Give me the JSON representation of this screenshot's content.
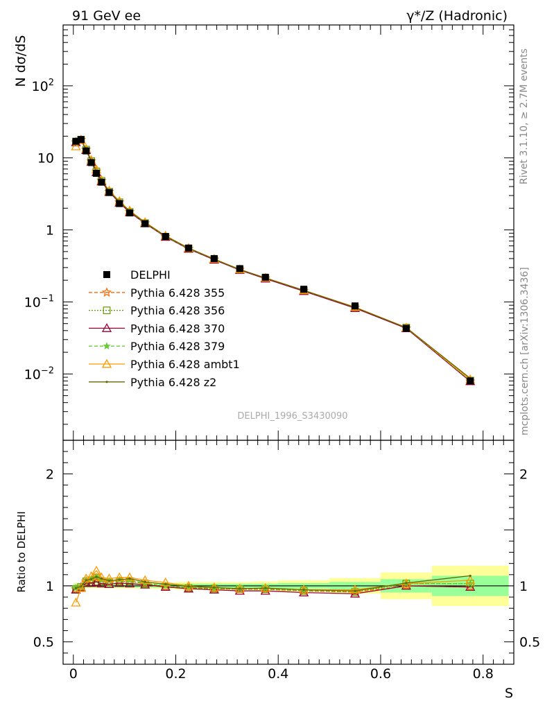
{
  "header": {
    "left": "91 GeV ee",
    "right": "γ*/Z (Hadronic)"
  },
  "side_labels": {
    "rivet": "Rivet 3.1.10, ≥ 2.7M events",
    "mcplots": "mcplots.cern.ch [arXiv:1306.3436]"
  },
  "analysis_id": "DELPHI_1996_S3430090",
  "colors": {
    "data": "#000000",
    "p355": "#ff6600",
    "p356": "#669900",
    "p370": "#990033",
    "p379": "#66cc33",
    "ambt1": "#ff9900",
    "z2": "#666600",
    "band_inner": "#99ff99",
    "band_outer": "#ffff99"
  },
  "chart_data": [
    {
      "type": "line",
      "panel": "main",
      "ylabel": "N dσ/dS",
      "yscale": "log",
      "ylim": [
        0.0012,
        700
      ],
      "xlim": [
        -0.02,
        0.86
      ],
      "y_tick_labels": [
        "10^-2",
        "10^-1",
        "1",
        "10",
        "10^2"
      ],
      "x": [
        0.005,
        0.015,
        0.025,
        0.035,
        0.045,
        0.055,
        0.07,
        0.09,
        0.11,
        0.14,
        0.18,
        0.225,
        0.275,
        0.325,
        0.375,
        0.45,
        0.55,
        0.65,
        0.775
      ],
      "legend_position": "middle-left",
      "series": [
        {
          "name": "DELPHI",
          "key": "data",
          "values": [
            17.0,
            18.0,
            12.5,
            8.6,
            6.1,
            4.6,
            3.3,
            2.32,
            1.72,
            1.22,
            0.81,
            0.56,
            0.4,
            0.29,
            0.22,
            0.15,
            0.088,
            0.043,
            0.008
          ]
        },
        {
          "name": "Pythia 6.428 355",
          "key": "p355",
          "values": [
            16.5,
            17.8,
            13.0,
            9.0,
            6.5,
            4.8,
            3.4,
            2.42,
            1.78,
            1.24,
            0.8,
            0.55,
            0.39,
            0.28,
            0.213,
            0.143,
            0.083,
            0.043,
            0.0079
          ]
        },
        {
          "name": "Pythia 6.428 356",
          "key": "p356",
          "values": [
            16.5,
            17.8,
            13.0,
            9.0,
            6.5,
            4.8,
            3.4,
            2.42,
            1.78,
            1.24,
            0.8,
            0.55,
            0.39,
            0.28,
            0.213,
            0.143,
            0.083,
            0.044,
            0.0081
          ]
        },
        {
          "name": "Pythia 6.428 370",
          "key": "p370",
          "values": [
            16.4,
            17.7,
            12.8,
            8.8,
            6.3,
            4.7,
            3.35,
            2.38,
            1.75,
            1.23,
            0.8,
            0.545,
            0.385,
            0.277,
            0.21,
            0.141,
            0.082,
            0.043,
            0.0079
          ]
        },
        {
          "name": "Pythia 6.428 379",
          "key": "p379",
          "values": [
            16.7,
            17.9,
            13.1,
            9.1,
            6.6,
            4.85,
            3.45,
            2.45,
            1.8,
            1.25,
            0.81,
            0.552,
            0.392,
            0.282,
            0.215,
            0.144,
            0.084,
            0.044,
            0.0081
          ]
        },
        {
          "name": "Pythia 6.428 ambt1",
          "key": "ambt1",
          "values": [
            14.4,
            17.6,
            13.3,
            9.3,
            6.9,
            4.9,
            3.5,
            2.5,
            1.85,
            1.28,
            0.83,
            0.56,
            0.395,
            0.283,
            0.216,
            0.145,
            0.085,
            0.044,
            0.0084
          ]
        },
        {
          "name": "Pythia 6.428 z2",
          "key": "z2",
          "values": [
            16.6,
            17.9,
            13.1,
            9.1,
            6.6,
            4.9,
            3.45,
            2.45,
            1.83,
            1.26,
            0.82,
            0.558,
            0.393,
            0.282,
            0.215,
            0.145,
            0.084,
            0.044,
            0.0087
          ]
        }
      ]
    },
    {
      "type": "line",
      "panel": "ratio",
      "ylabel": "Ratio to DELPHI",
      "xlabel": "S",
      "ylim": [
        0.3,
        2.3
      ],
      "xlim": [
        -0.02,
        0.86
      ],
      "x_tick_labels": [
        "0",
        "0.2",
        "0.4",
        "0.6",
        "0.8"
      ],
      "y_tick_labels": [
        "0.5",
        "1",
        "2"
      ],
      "bin_edges": [
        0.0,
        0.01,
        0.02,
        0.03,
        0.04,
        0.05,
        0.06,
        0.08,
        0.1,
        0.12,
        0.16,
        0.2,
        0.25,
        0.3,
        0.35,
        0.4,
        0.5,
        0.6,
        0.7,
        0.85
      ],
      "band_inner": [
        0.015,
        0.013,
        0.013,
        0.013,
        0.013,
        0.013,
        0.013,
        0.014,
        0.014,
        0.015,
        0.016,
        0.02,
        0.02,
        0.02,
        0.02,
        0.025,
        0.035,
        0.06,
        0.09
      ],
      "band_outer": [
        0.025,
        0.022,
        0.022,
        0.022,
        0.022,
        0.022,
        0.022,
        0.024,
        0.024,
        0.025,
        0.027,
        0.035,
        0.035,
        0.035,
        0.04,
        0.05,
        0.07,
        0.12,
        0.18
      ],
      "series": [
        {
          "key": "p355",
          "values": [
            0.97,
            0.99,
            1.04,
            1.05,
            1.07,
            1.04,
            1.03,
            1.04,
            1.04,
            1.02,
            0.99,
            0.98,
            0.975,
            0.97,
            0.97,
            0.955,
            0.945,
            1.0,
            0.99
          ]
        },
        {
          "key": "p356",
          "values": [
            0.97,
            0.99,
            1.04,
            1.05,
            1.07,
            1.04,
            1.03,
            1.04,
            1.04,
            1.02,
            0.99,
            0.98,
            0.975,
            0.97,
            0.97,
            0.955,
            0.945,
            1.02,
            1.02
          ]
        },
        {
          "key": "p370",
          "values": [
            0.965,
            0.985,
            1.025,
            1.025,
            1.035,
            1.02,
            1.015,
            1.025,
            1.02,
            1.01,
            0.99,
            0.975,
            0.965,
            0.955,
            0.955,
            0.94,
            0.93,
            1.0,
            0.99
          ]
        },
        {
          "key": "p379",
          "values": [
            0.98,
            0.995,
            1.05,
            1.06,
            1.08,
            1.05,
            1.045,
            1.055,
            1.05,
            1.025,
            1.0,
            0.985,
            0.98,
            0.975,
            0.977,
            0.96,
            0.955,
            1.02,
            1.02
          ]
        },
        {
          "key": "ambt1",
          "values": [
            0.85,
            0.98,
            1.065,
            1.085,
            1.135,
            1.075,
            1.065,
            1.075,
            1.075,
            1.05,
            1.03,
            1.0,
            0.985,
            0.975,
            0.98,
            0.965,
            0.965,
            1.02,
            1.05
          ]
        },
        {
          "key": "z2",
          "values": [
            0.98,
            0.995,
            1.05,
            1.06,
            1.08,
            1.065,
            1.045,
            1.055,
            1.065,
            1.035,
            1.015,
            0.995,
            0.985,
            0.975,
            0.98,
            0.965,
            0.955,
            1.025,
            1.09
          ]
        }
      ]
    }
  ]
}
